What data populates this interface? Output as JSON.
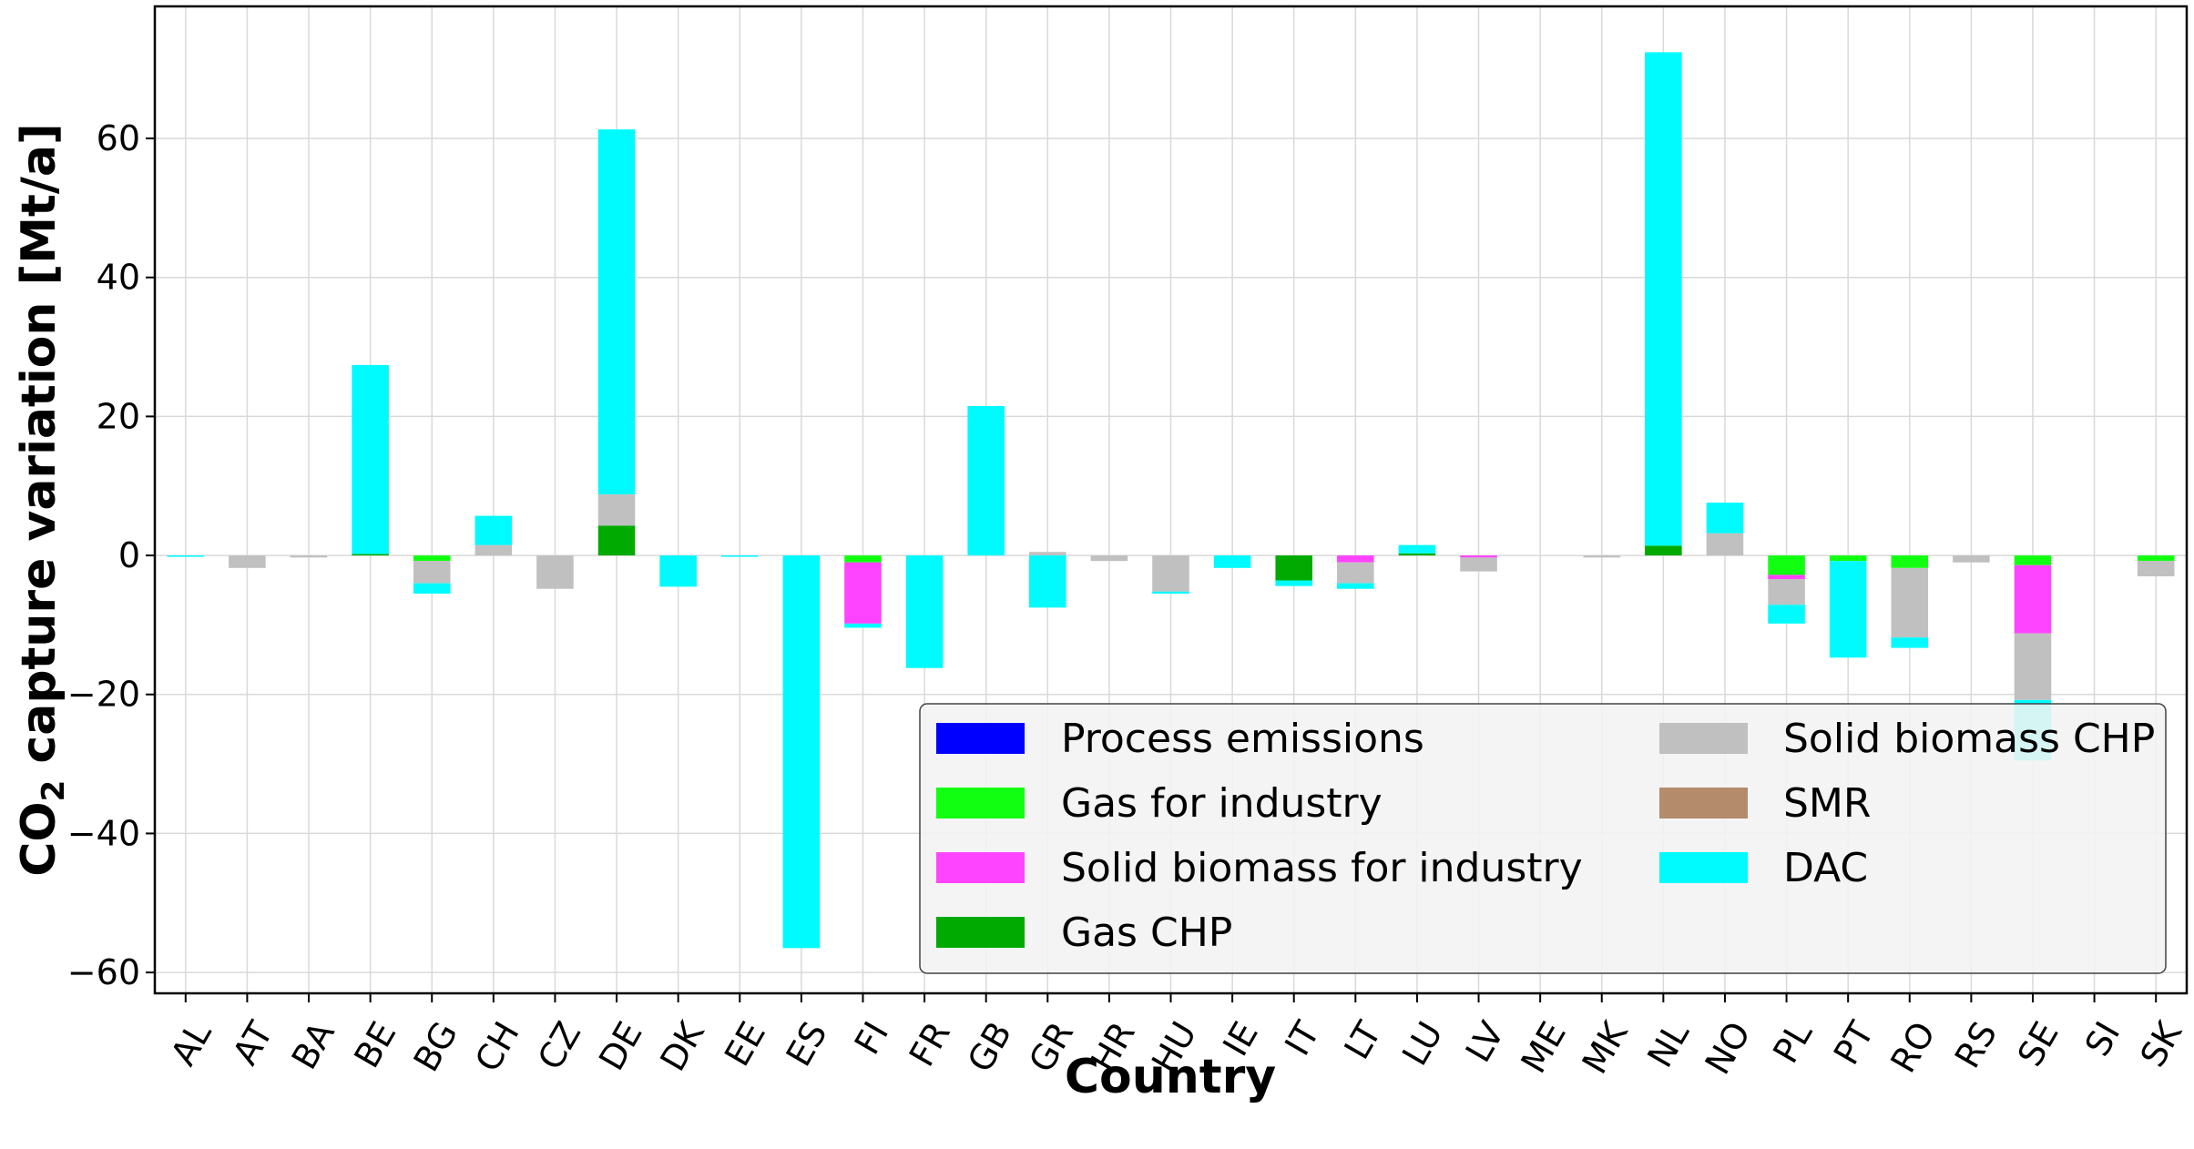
{
  "chart_data": {
    "type": "bar",
    "stacked": true,
    "title": "",
    "xlabel": "Country",
    "ylabel": "CO",
    "ylabel_subscript": "2",
    "ylabel_suffix": " capture variation [Mt/a]",
    "ylim": [
      -63,
      79
    ],
    "yticks": [
      -60,
      -40,
      -20,
      0,
      20,
      40,
      60
    ],
    "ytick_labels": [
      "−60",
      "−40",
      "−20",
      "0",
      "20",
      "40",
      "60"
    ],
    "grid": true,
    "legend_position": "lower-right",
    "categories": [
      "AL",
      "AT",
      "BA",
      "BE",
      "BG",
      "CH",
      "CZ",
      "DE",
      "DK",
      "EE",
      "ES",
      "FI",
      "FR",
      "GB",
      "GR",
      "HR",
      "HU",
      "IE",
      "IT",
      "LT",
      "LU",
      "LV",
      "ME",
      "MK",
      "NL",
      "NO",
      "PL",
      "PT",
      "RO",
      "RS",
      "SE",
      "SI",
      "SK"
    ],
    "series": [
      {
        "name": "Process emissions",
        "color": "#0000ff",
        "values": [
          0,
          0,
          0,
          0,
          0,
          0,
          0,
          0,
          0,
          0,
          0,
          0,
          0,
          0,
          0,
          0,
          0,
          0,
          0,
          0,
          0,
          0,
          0,
          0,
          0,
          0,
          0,
          0,
          0,
          0,
          0,
          0,
          0
        ]
      },
      {
        "name": "Gas for industry",
        "color": "#11ff11",
        "values": [
          0,
          0,
          0,
          0,
          -0.8,
          0,
          0,
          0,
          0,
          0,
          0,
          -1,
          0,
          0,
          0,
          0,
          0,
          0,
          0,
          0,
          0,
          0,
          0,
          0,
          0,
          0,
          -2.8,
          -0.8,
          -1.8,
          0,
          -1.4,
          0,
          -0.8
        ]
      },
      {
        "name": "Solid biomass for industry",
        "color": "#ff44ff",
        "values": [
          0,
          0,
          0,
          0,
          0,
          0,
          0,
          0,
          0,
          0,
          0,
          -8.8,
          0,
          0,
          0,
          0,
          0,
          0,
          0,
          -1,
          0,
          -0.3,
          0,
          0,
          0,
          0,
          -0.6,
          0,
          0,
          0,
          -9.8,
          0,
          0
        ]
      },
      {
        "name": "Gas CHP",
        "color": "#00aa00",
        "values": [
          0,
          0,
          0,
          0.2,
          0,
          0,
          0,
          4.3,
          0,
          0,
          0,
          0,
          0,
          0,
          0,
          0,
          0,
          0,
          -3.6,
          0,
          0.3,
          0,
          0,
          0,
          1.4,
          0,
          0,
          0,
          0,
          0,
          0,
          0,
          0
        ]
      },
      {
        "name": "Solid biomass CHP",
        "color": "#c0c0c0",
        "values": [
          0,
          -1.8,
          -0.3,
          0,
          -3.2,
          1.5,
          -4.8,
          4.5,
          0,
          0,
          0,
          0,
          0,
          0,
          0.5,
          -0.8,
          -5.2,
          0,
          0,
          -3,
          0,
          -2,
          0,
          -0.3,
          0,
          3.2,
          -3.7,
          0,
          -10,
          -1,
          -9.6,
          0,
          -2.2
        ]
      },
      {
        "name": "SMR",
        "color": "#b48b6b",
        "values": [
          0,
          0,
          0,
          0,
          0,
          0,
          0,
          0,
          0,
          0,
          0,
          0,
          0,
          0,
          0,
          0,
          0,
          0,
          0,
          0,
          0,
          0,
          0,
          0,
          0,
          0,
          0,
          0,
          0,
          0,
          0,
          0,
          0
        ]
      },
      {
        "name": "DAC",
        "color": "#00fbff",
        "values": [
          -0.2,
          0,
          0,
          27.2,
          -1.5,
          4.2,
          0,
          52.5,
          -4.5,
          -0.2,
          -56.5,
          -0.6,
          -16.2,
          21.5,
          -7.5,
          0,
          -0.3,
          -1.8,
          -0.8,
          -0.8,
          1.2,
          0,
          0,
          0,
          71,
          4.4,
          -2.7,
          -13.9,
          -1.5,
          0,
          -8.7,
          0,
          0
        ]
      }
    ]
  },
  "legend": {
    "columns": [
      [
        "Process emissions",
        "Gas for industry",
        "Solid biomass for industry",
        "Gas CHP"
      ],
      [
        "Solid biomass CHP",
        "SMR",
        "DAC"
      ]
    ]
  }
}
